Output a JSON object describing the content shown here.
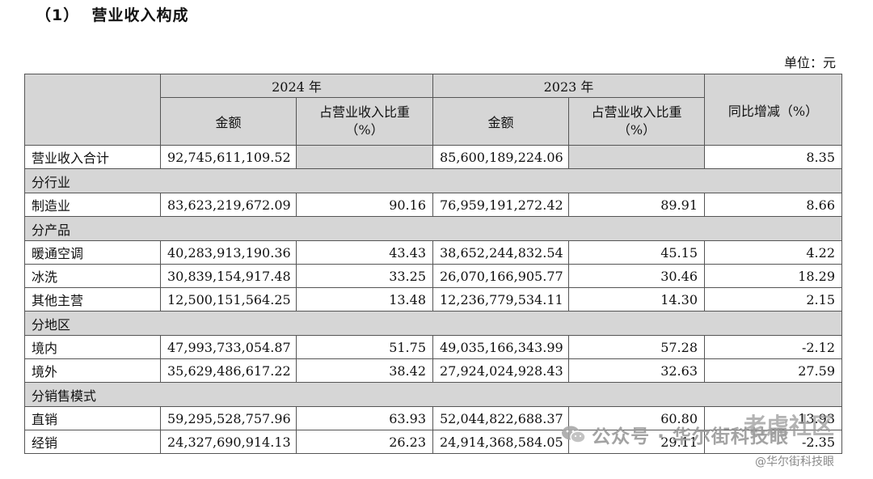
{
  "title": "（1）  营业收入构成",
  "unit": "单位：元",
  "headers": {
    "year_2024": "2024 年",
    "year_2023": "2023 年",
    "amount": "金额",
    "share_line1": "占营业收入比重",
    "share_line2": "（%）",
    "yoy": "同比增减（%）"
  },
  "total": {
    "label": "营业收入合计",
    "amount_2024": "92,745,611,109.52",
    "amount_2023": "85,600,189,224.06",
    "yoy": "8.35"
  },
  "sections": [
    {
      "name": "分行业",
      "rows": [
        {
          "label": "制造业",
          "amount_2024": "83,623,219,672.09",
          "share_2024": "90.16",
          "amount_2023": "76,959,191,272.42",
          "share_2023": "89.91",
          "yoy": "8.66"
        }
      ]
    },
    {
      "name": "分产品",
      "rows": [
        {
          "label": "暖通空调",
          "amount_2024": "40,283,913,190.36",
          "share_2024": "43.43",
          "amount_2023": "38,652,244,832.54",
          "share_2023": "45.15",
          "yoy": "4.22"
        },
        {
          "label": "冰洗",
          "amount_2024": "30,839,154,917.48",
          "share_2024": "33.25",
          "amount_2023": "26,070,166,905.77",
          "share_2023": "30.46",
          "yoy": "18.29"
        },
        {
          "label": "其他主营",
          "amount_2024": "12,500,151,564.25",
          "share_2024": "13.48",
          "amount_2023": "12,236,779,534.11",
          "share_2023": "14.30",
          "yoy": "2.15"
        }
      ]
    },
    {
      "name": "分地区",
      "rows": [
        {
          "label": "境内",
          "amount_2024": "47,993,733,054.87",
          "share_2024": "51.75",
          "amount_2023": "49,035,166,343.99",
          "share_2023": "57.28",
          "yoy": "-2.12"
        },
        {
          "label": "境外",
          "amount_2024": "35,629,486,617.22",
          "share_2024": "38.42",
          "amount_2023": "27,924,024,928.43",
          "share_2023": "32.63",
          "yoy": "27.59"
        }
      ]
    },
    {
      "name": "分销售模式",
      "rows": [
        {
          "label": "直销",
          "amount_2024": "59,295,528,757.96",
          "share_2024": "63.93",
          "amount_2023": "52,044,822,688.37",
          "share_2023": "60.80",
          "yoy": "13.93"
        },
        {
          "label": "经销",
          "amount_2024": "24,327,690,914.13",
          "share_2024": "26.23",
          "amount_2023": "24,914,368,584.05",
          "share_2023": "29.11",
          "yoy": "-2.35"
        }
      ]
    }
  ],
  "watermark": {
    "main": "公众号 · 华尔街科技眼",
    "big": "老虎社区",
    "small": "@华尔街科技眼"
  }
}
